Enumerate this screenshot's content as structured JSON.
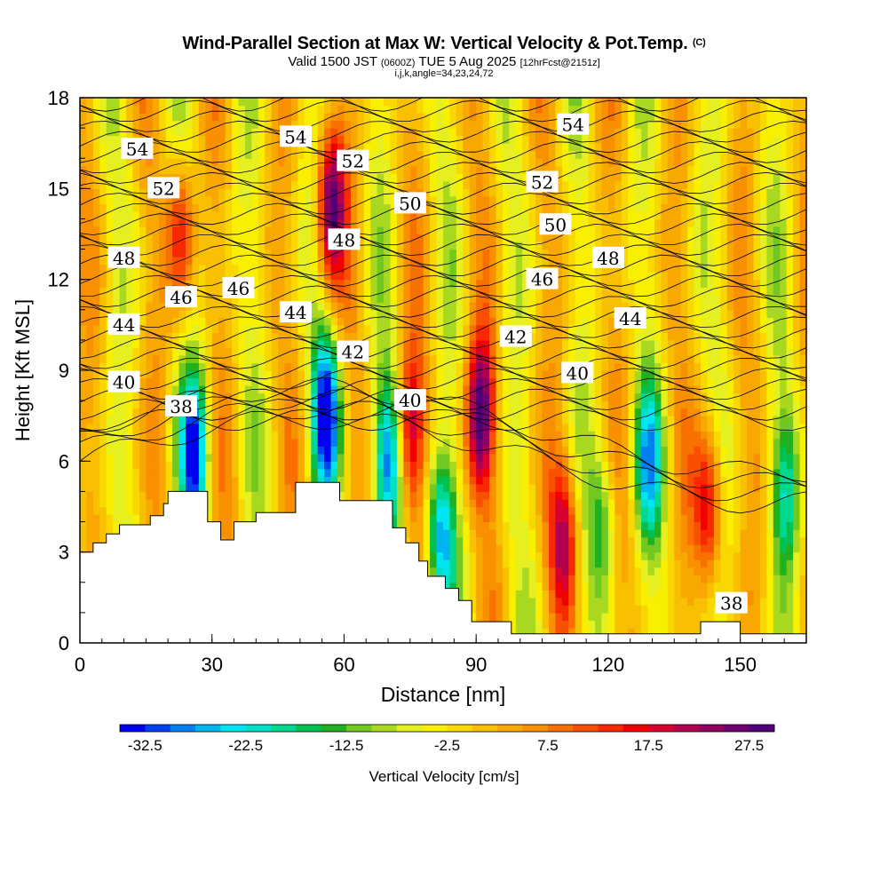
{
  "header": {
    "title": "Wind-Parallel Section at Max W: Vertical Velocity & Pot.Temp.",
    "copyright": "(C)",
    "valid_prefix": "Valid 1500 JST",
    "valid_zulu": "(0600Z)",
    "valid_date": "TUE 5 Aug 2025",
    "forecast": "[12hrFcst@2151z]",
    "grid_info": "i,j,k,angle=34,23,24,72"
  },
  "chart_data": {
    "type": "heatmap",
    "title": "Wind-Parallel Section at Max W: Vertical Velocity & Pot.Temp.",
    "xlabel": "Distance [nm]",
    "ylabel": "Height [Kft MSL]",
    "xlim": [
      0,
      165
    ],
    "ylim": [
      0,
      18
    ],
    "x_ticks": [
      0,
      30,
      60,
      90,
      120,
      150
    ],
    "y_ticks": [
      0,
      3,
      6,
      9,
      12,
      15,
      18
    ],
    "colorbar": {
      "label": "Vertical Velocity [cm/s]",
      "min": -35,
      "max": 30,
      "step": 2.5,
      "tick_labels": [
        "-32.5",
        "-22.5",
        "-12.5",
        "-2.5",
        "7.5",
        "17.5",
        "27.5"
      ],
      "colors": [
        "#0000f0",
        "#0040f0",
        "#0080f0",
        "#00b4f0",
        "#00e6f0",
        "#00e0c8",
        "#00d890",
        "#00c050",
        "#20b020",
        "#70c820",
        "#a8d820",
        "#e6f020",
        "#f8f000",
        "#f8d800",
        "#f8c000",
        "#f8a800",
        "#f89000",
        "#f87000",
        "#f85000",
        "#f82800",
        "#f00000",
        "#d80030",
        "#b00050",
        "#900060",
        "#700070",
        "#500078"
      ]
    },
    "potential_temperature_contours": {
      "units": "theta",
      "labels": [
        {
          "value": "54",
          "x": 13,
          "z": 16.3
        },
        {
          "value": "54",
          "x": 49,
          "z": 16.7
        },
        {
          "value": "54",
          "x": 112,
          "z": 17.1
        },
        {
          "value": "52",
          "x": 19,
          "z": 15.0
        },
        {
          "value": "52",
          "x": 62,
          "z": 15.9
        },
        {
          "value": "52",
          "x": 105,
          "z": 15.2
        },
        {
          "value": "50",
          "x": 75,
          "z": 14.5
        },
        {
          "value": "50",
          "x": 108,
          "z": 13.8
        },
        {
          "value": "48",
          "x": 10,
          "z": 12.7
        },
        {
          "value": "48",
          "x": 60,
          "z": 13.3
        },
        {
          "value": "48",
          "x": 120,
          "z": 12.7
        },
        {
          "value": "46",
          "x": 23,
          "z": 11.4
        },
        {
          "value": "46",
          "x": 36,
          "z": 11.7
        },
        {
          "value": "46",
          "x": 105,
          "z": 12.0
        },
        {
          "value": "44",
          "x": 10,
          "z": 10.5
        },
        {
          "value": "44",
          "x": 49,
          "z": 10.9
        },
        {
          "value": "44",
          "x": 125,
          "z": 10.7
        },
        {
          "value": "42",
          "x": 62,
          "z": 9.6
        },
        {
          "value": "42",
          "x": 99,
          "z": 10.1
        },
        {
          "value": "40",
          "x": 10,
          "z": 8.6
        },
        {
          "value": "40",
          "x": 75,
          "z": 8.0
        },
        {
          "value": "40",
          "x": 113,
          "z": 8.9
        },
        {
          "value": "38",
          "x": 23,
          "z": 7.8
        },
        {
          "value": "38",
          "x": 148,
          "z": 1.3
        }
      ]
    },
    "velocity_features": [
      {
        "x": 26,
        "z": 6.3,
        "w": -30
      },
      {
        "x": 56,
        "z": 7.5,
        "w": -32.5
      },
      {
        "x": 70,
        "z": 6.0,
        "w": -25
      },
      {
        "x": 82,
        "z": 3.5,
        "w": -25
      },
      {
        "x": 57,
        "z": 14.5,
        "w": 27.5
      },
      {
        "x": 91,
        "z": 7.5,
        "w": 27.5
      },
      {
        "x": 110,
        "z": 3.5,
        "w": 20
      },
      {
        "x": 143,
        "z": 4.5,
        "w": 20
      },
      {
        "x": 75,
        "z": 7.0,
        "w": 20
      },
      {
        "x": 23,
        "z": 13.5,
        "w": 17.5
      },
      {
        "x": 119,
        "z": 4.0,
        "w": -12.5
      },
      {
        "x": 129,
        "z": 6.0,
        "w": -20
      },
      {
        "x": 160,
        "z": 5.0,
        "w": -15
      }
    ],
    "terrain": [
      [
        0,
        3
      ],
      [
        3,
        3
      ],
      [
        3,
        3.3
      ],
      [
        6,
        3.3
      ],
      [
        6,
        3.6
      ],
      [
        9,
        3.6
      ],
      [
        9,
        3.9
      ],
      [
        16,
        3.9
      ],
      [
        16,
        4.2
      ],
      [
        19,
        4.2
      ],
      [
        19,
        4.6
      ],
      [
        20,
        4.6
      ],
      [
        20,
        5
      ],
      [
        29,
        5
      ],
      [
        29,
        4
      ],
      [
        32,
        4
      ],
      [
        32,
        3.4
      ],
      [
        35,
        3.4
      ],
      [
        35,
        4
      ],
      [
        40,
        4
      ],
      [
        40,
        4.3
      ],
      [
        49,
        4.3
      ],
      [
        49,
        5.3
      ],
      [
        59,
        5.3
      ],
      [
        59,
        4.7
      ],
      [
        71,
        4.7
      ],
      [
        71,
        3.8
      ],
      [
        74,
        3.8
      ],
      [
        74,
        3.3
      ],
      [
        77,
        3.3
      ],
      [
        77,
        2.7
      ],
      [
        79,
        2.7
      ],
      [
        79,
        2.2
      ],
      [
        83,
        2.2
      ],
      [
        83,
        1.8
      ],
      [
        86,
        1.8
      ],
      [
        86,
        1.4
      ],
      [
        89,
        1.4
      ],
      [
        89,
        0.7
      ],
      [
        98,
        0.7
      ],
      [
        98,
        0.3
      ],
      [
        141,
        0.3
      ],
      [
        141,
        0.7
      ],
      [
        150,
        0.7
      ],
      [
        150,
        0.3
      ],
      [
        165,
        0.3
      ]
    ]
  }
}
